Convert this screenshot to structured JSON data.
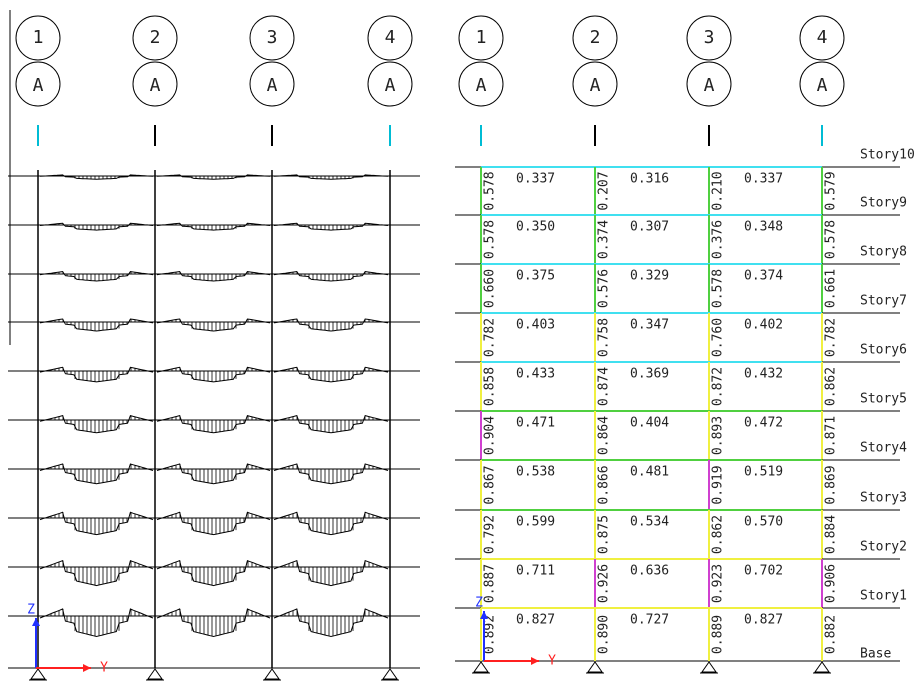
{
  "left_panel": {
    "grid_labels": [
      "1",
      "2",
      "3",
      "4"
    ],
    "row_labels": [
      "A",
      "A",
      "A",
      "A"
    ],
    "axis": {
      "z": "Z",
      "y": "Y"
    }
  },
  "right_panel": {
    "grid_labels": [
      "1",
      "2",
      "3",
      "4"
    ],
    "row_labels": [
      "A",
      "A",
      "A",
      "A"
    ],
    "axis": {
      "z": "Z",
      "y": "Y"
    },
    "stories": [
      "Story10",
      "Story9",
      "Story8",
      "Story7",
      "Story6",
      "Story5",
      "Story4",
      "Story3",
      "Story2",
      "Story1",
      "Base"
    ],
    "beam_ratios": [
      [
        "0.337",
        "0.316",
        "0.337"
      ],
      [
        "0.350",
        "0.307",
        "0.348"
      ],
      [
        "0.375",
        "0.329",
        "0.374"
      ],
      [
        "0.403",
        "0.347",
        "0.402"
      ],
      [
        "0.433",
        "0.369",
        "0.432"
      ],
      [
        "0.471",
        "0.404",
        "0.472"
      ],
      [
        "0.538",
        "0.481",
        "0.519"
      ],
      [
        "0.599",
        "0.534",
        "0.570"
      ],
      [
        "0.711",
        "0.636",
        "0.702"
      ],
      [
        "0.827",
        "0.727",
        "0.827"
      ]
    ],
    "column_ratios": [
      [
        "0.578",
        "0.207",
        "0.210",
        "0.579"
      ],
      [
        "0.578",
        "0.374",
        "0.376",
        "0.578"
      ],
      [
        "0.660",
        "0.576",
        "0.578",
        "0.661"
      ],
      [
        "0.782",
        "0.758",
        "0.760",
        "0.782"
      ],
      [
        "0.858",
        "0.874",
        "0.872",
        "0.862"
      ],
      [
        "0.904",
        "0.864",
        "0.893",
        "0.871"
      ],
      [
        "0.867",
        "0.866",
        "0.919",
        "0.869"
      ],
      [
        "0.792",
        "0.875",
        "0.862",
        "0.884"
      ],
      [
        "0.887",
        "0.926",
        "0.923",
        "0.906"
      ],
      [
        "0.892",
        "0.890",
        "0.889",
        "0.882"
      ]
    ]
  }
}
